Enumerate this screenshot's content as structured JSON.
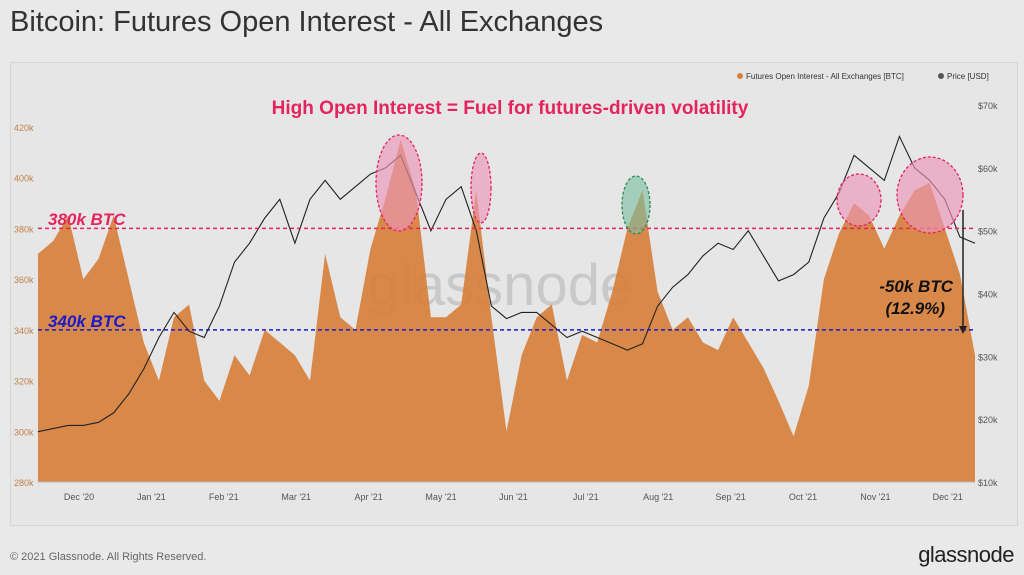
{
  "title": "Bitcoin: Futures Open Interest - All Exchanges",
  "footer": "© 2021 Glassnode. All Rights Reserved.",
  "logo": "glassnode",
  "watermark": "glassnode",
  "colors": {
    "oi": "#d6813c",
    "price": "#222222",
    "annot": "#e5245e",
    "blue": "#1a1acc",
    "green": "#2a8a5a"
  },
  "annotations": {
    "headline": "High Open Interest = Fuel for futures-driven volatility",
    "line380": "380k BTC",
    "line340": "340k BTC",
    "drop": "-50k BTC",
    "drop_pct": "(12.9%)"
  },
  "chart_data": {
    "type": "area+line",
    "title": "Bitcoin: Futures Open Interest - All Exchanges",
    "legend": [
      "Futures Open Interest - All Exchanges [BTC]",
      "Price [USD]"
    ],
    "legend_position": "top-right",
    "x_start": "2020-11-20",
    "interval_days": 6,
    "x_ticks": [
      "Dec '20",
      "Jan '21",
      "Feb '21",
      "Mar '21",
      "Apr '21",
      "May '21",
      "Jun '21",
      "Jul '21",
      "Aug '21",
      "Sep '21",
      "Oct '21",
      "Nov '21",
      "Dec '21"
    ],
    "y_left_ticks": [
      "280k",
      "300k",
      "320k",
      "340k",
      "360k",
      "380k",
      "400k",
      "420k"
    ],
    "y_left_range": [
      280000,
      420000
    ],
    "y_right_ticks": [
      "$10k",
      "$20k",
      "$30k",
      "$40k",
      "$50k",
      "$60k",
      "$70k"
    ],
    "y_right_range": [
      10000,
      70000
    ],
    "series": [
      {
        "name": "Futures Open Interest - All Exchanges [BTC]",
        "unit": "k BTC",
        "values": [
          370,
          375,
          385,
          360,
          368,
          385,
          360,
          335,
          320,
          345,
          350,
          320,
          312,
          330,
          322,
          340,
          335,
          330,
          320,
          370,
          345,
          340,
          372,
          392,
          415,
          395,
          345,
          345,
          350,
          395,
          345,
          300,
          330,
          345,
          350,
          320,
          338,
          335,
          355,
          380,
          395,
          355,
          340,
          345,
          335,
          332,
          345,
          335,
          325,
          312,
          298,
          318,
          360,
          378,
          390,
          385,
          372,
          385,
          395,
          398,
          380,
          362,
          330
        ]
      },
      {
        "name": "Price [USD]",
        "unit": "k USD",
        "values": [
          18,
          18.5,
          19,
          19,
          19.5,
          21,
          24,
          28,
          33,
          37,
          34,
          33,
          38,
          45,
          48,
          52,
          55,
          48,
          55,
          58,
          55,
          57,
          59,
          60,
          62,
          56,
          50,
          55,
          57,
          50,
          38,
          36,
          37,
          37,
          35,
          33,
          34,
          33,
          32,
          31,
          32,
          38,
          41,
          43,
          46,
          48,
          47,
          50,
          46,
          42,
          43,
          45,
          52,
          56,
          62,
          60,
          58,
          65,
          60,
          58,
          55,
          49,
          48
        ]
      }
    ]
  }
}
